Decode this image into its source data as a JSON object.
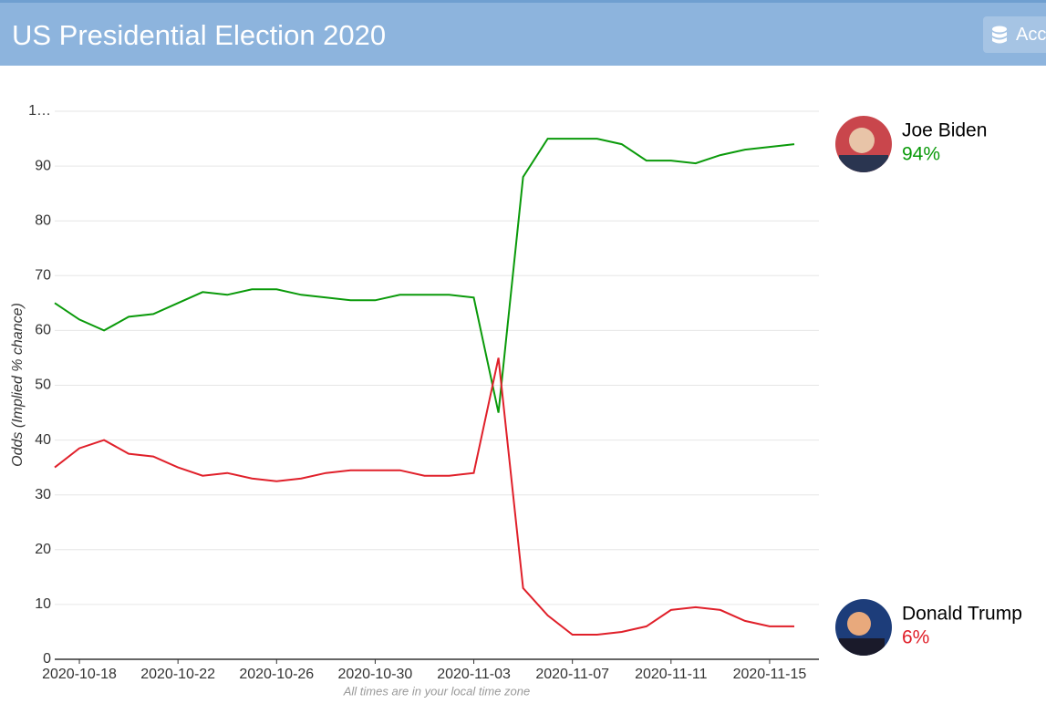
{
  "header": {
    "title": "US Presidential Election 2020",
    "button": "Acc"
  },
  "chart_data": {
    "type": "line",
    "ylabel": "Odds (Implied % chance)",
    "footnote": "All times are in your local time zone",
    "x": [
      "2020-10-17",
      "2020-10-18",
      "2020-10-19",
      "2020-10-20",
      "2020-10-21",
      "2020-10-22",
      "2020-10-23",
      "2020-10-24",
      "2020-10-25",
      "2020-10-26",
      "2020-10-27",
      "2020-10-28",
      "2020-10-29",
      "2020-10-30",
      "2020-10-31",
      "2020-11-01",
      "2020-11-02",
      "2020-11-03",
      "2020-11-04",
      "2020-11-05",
      "2020-11-06",
      "2020-11-07",
      "2020-11-08",
      "2020-11-09",
      "2020-11-10",
      "2020-11-11",
      "2020-11-12",
      "2020-11-13",
      "2020-11-14",
      "2020-11-15",
      "2020-11-16"
    ],
    "series": [
      {
        "name": "Joe Biden",
        "color": "#0a9a0a",
        "current_label": "94%",
        "values": [
          65,
          62,
          60,
          62.5,
          63,
          65,
          67,
          66.5,
          67.5,
          67.5,
          66.5,
          66,
          65.5,
          65.5,
          66.5,
          66.5,
          66.5,
          66,
          45,
          88,
          95,
          95,
          95,
          94,
          91,
          91,
          90.5,
          92,
          93,
          93.5,
          94
        ]
      },
      {
        "name": "Donald Trump",
        "color": "#e0202a",
        "current_label": "6%",
        "values": [
          35,
          38.5,
          40,
          37.5,
          37,
          35,
          33.5,
          34,
          33,
          32.5,
          33,
          34,
          34.5,
          34.5,
          34.5,
          33.5,
          33.5,
          34,
          55,
          13,
          8,
          4.5,
          4.5,
          5,
          6,
          9,
          9.5,
          9,
          7,
          6,
          6
        ]
      }
    ],
    "xlim": [
      "2020-10-17",
      "2020-11-17"
    ],
    "xticks": [
      "2020-10-18",
      "2020-10-22",
      "2020-10-26",
      "2020-10-30",
      "2020-11-03",
      "2020-11-07",
      "2020-11-11",
      "2020-11-15"
    ],
    "ylim": [
      0,
      100
    ],
    "yticks": [
      0,
      10,
      20,
      30,
      40,
      50,
      60,
      70,
      80,
      90,
      {
        "value": 100,
        "label": "1…"
      }
    ],
    "grid": true
  }
}
